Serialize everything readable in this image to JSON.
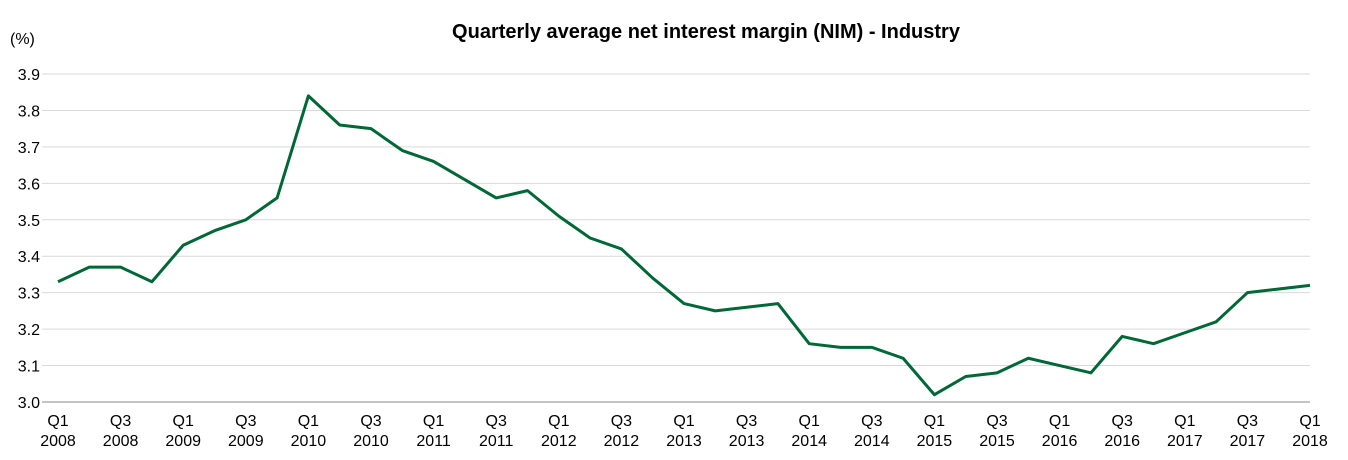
{
  "chart_data": {
    "type": "line",
    "title": "Quarterly average net interest margin (NIM) - Industry",
    "y_label": "(%)",
    "categories": [
      "Q1 2008",
      null,
      "Q3 2008",
      null,
      "Q1 2009",
      null,
      "Q3 2009",
      null,
      "Q1 2010",
      null,
      "Q3 2010",
      null,
      "Q1 2011",
      null,
      "Q3 2011",
      null,
      "Q1 2012",
      null,
      "Q3 2012",
      null,
      "Q1 2013",
      null,
      "Q3 2013",
      null,
      "Q1 2014",
      null,
      "Q3 2014",
      null,
      "Q1 2015",
      null,
      "Q3 2015",
      null,
      "Q1 2016",
      null,
      "Q3 2016",
      null,
      "Q1 2017",
      null,
      "Q3 2017",
      null,
      "Q1 2018"
    ],
    "series": [
      {
        "name": "NIM",
        "color": "#006837",
        "values": [
          3.33,
          3.37,
          3.37,
          3.33,
          3.43,
          3.47,
          3.5,
          3.56,
          3.84,
          3.76,
          3.75,
          3.69,
          3.66,
          3.61,
          3.56,
          3.58,
          3.51,
          3.45,
          3.42,
          3.34,
          3.27,
          3.25,
          3.26,
          3.27,
          3.16,
          3.15,
          3.15,
          3.12,
          3.02,
          3.07,
          3.08,
          3.12,
          3.1,
          3.08,
          3.18,
          3.16,
          3.19,
          3.22,
          3.3,
          3.31,
          3.32
        ]
      }
    ],
    "ylim": [
      3.0,
      3.9
    ],
    "yticks": [
      {
        "value": 3,
        "label": "3.0"
      },
      3.1,
      3.2,
      3.3,
      3.4,
      3.5,
      3.6,
      3.7,
      3.8,
      3.9
    ],
    "grid": true
  }
}
